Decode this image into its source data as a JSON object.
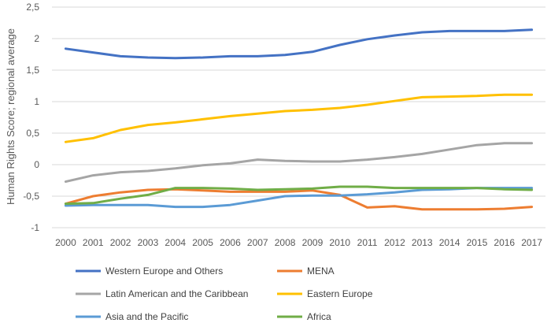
{
  "chart_data": {
    "type": "line",
    "title": "",
    "xlabel": "",
    "ylabel": "Human Rights Score; regional average",
    "x": [
      "2000",
      "2001",
      "2002",
      "2003",
      "2004",
      "2005",
      "2006",
      "2007",
      "2008",
      "2009",
      "2010",
      "2011",
      "2012",
      "2013",
      "2014",
      "2015",
      "2016",
      "2017"
    ],
    "ylim": [
      -1,
      2.5
    ],
    "yticks": [
      -1,
      -0.5,
      0,
      0.5,
      1,
      1.5,
      2,
      2.5
    ],
    "ytick_labels": [
      "-1",
      "-0,5",
      "0",
      "0,5",
      "1",
      "1,5",
      "2",
      "2,5"
    ],
    "grid": "horizontal",
    "legend_position": "bottom",
    "series": [
      {
        "name": "Western Europe and Others",
        "color": "#4472c4",
        "values": [
          1.84,
          1.78,
          1.72,
          1.7,
          1.69,
          1.7,
          1.72,
          1.72,
          1.74,
          1.79,
          1.9,
          1.99,
          2.05,
          2.1,
          2.12,
          2.12,
          2.12,
          2.14
        ]
      },
      {
        "name": "MENA",
        "color": "#ed7d31",
        "values": [
          -0.62,
          -0.5,
          -0.44,
          -0.4,
          -0.39,
          -0.41,
          -0.43,
          -0.43,
          -0.43,
          -0.41,
          -0.48,
          -0.68,
          -0.66,
          -0.71,
          -0.71,
          -0.71,
          -0.7,
          -0.67
        ]
      },
      {
        "name": "Latin American and the Caribbean",
        "color": "#a5a5a5",
        "values": [
          -0.27,
          -0.17,
          -0.12,
          -0.1,
          -0.06,
          -0.01,
          0.02,
          0.08,
          0.06,
          0.05,
          0.05,
          0.08,
          0.12,
          0.17,
          0.24,
          0.31,
          0.34,
          0.34
        ]
      },
      {
        "name": "Eastern Europe",
        "color": "#ffc000",
        "values": [
          0.36,
          0.42,
          0.55,
          0.63,
          0.67,
          0.72,
          0.77,
          0.81,
          0.85,
          0.87,
          0.9,
          0.95,
          1.01,
          1.07,
          1.08,
          1.09,
          1.11,
          1.11
        ]
      },
      {
        "name": "Asia and the Pacific",
        "color": "#5b9bd5",
        "values": [
          -0.65,
          -0.64,
          -0.64,
          -0.64,
          -0.67,
          -0.67,
          -0.64,
          -0.57,
          -0.5,
          -0.49,
          -0.49,
          -0.47,
          -0.44,
          -0.4,
          -0.39,
          -0.37,
          -0.37,
          -0.37
        ]
      },
      {
        "name": "Africa",
        "color": "#70ad47",
        "values": [
          -0.62,
          -0.61,
          -0.54,
          -0.48,
          -0.37,
          -0.37,
          -0.38,
          -0.4,
          -0.39,
          -0.38,
          -0.35,
          -0.35,
          -0.37,
          -0.37,
          -0.37,
          -0.37,
          -0.39,
          -0.4
        ]
      }
    ]
  }
}
